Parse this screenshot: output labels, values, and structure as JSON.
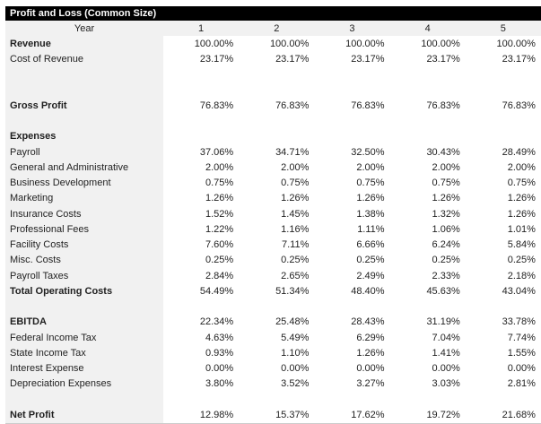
{
  "table": {
    "title": "Profit and Loss (Common Size)",
    "year_label": "Year",
    "years": [
      "1",
      "2",
      "3",
      "4",
      "5"
    ],
    "rows": [
      {
        "label": "Revenue",
        "bold": true,
        "values": [
          "100.00%",
          "100.00%",
          "100.00%",
          "100.00%",
          "100.00%"
        ]
      },
      {
        "label": "Cost of Revenue",
        "bold": false,
        "values": [
          "23.17%",
          "23.17%",
          "23.17%",
          "23.17%",
          "23.17%"
        ]
      },
      {
        "blank": true
      },
      {
        "blank": true
      },
      {
        "label": "Gross Profit",
        "bold": true,
        "values": [
          "76.83%",
          "76.83%",
          "76.83%",
          "76.83%",
          "76.83%"
        ]
      },
      {
        "blank": true
      },
      {
        "label": "Expenses",
        "bold": true,
        "values": [
          "",
          "",
          "",
          "",
          ""
        ]
      },
      {
        "label": "Payroll",
        "bold": false,
        "values": [
          "37.06%",
          "34.71%",
          "32.50%",
          "30.43%",
          "28.49%"
        ]
      },
      {
        "label": "General and Administrative",
        "bold": false,
        "values": [
          "2.00%",
          "2.00%",
          "2.00%",
          "2.00%",
          "2.00%"
        ]
      },
      {
        "label": "Business Development",
        "bold": false,
        "values": [
          "0.75%",
          "0.75%",
          "0.75%",
          "0.75%",
          "0.75%"
        ]
      },
      {
        "label": "Marketing",
        "bold": false,
        "values": [
          "1.26%",
          "1.26%",
          "1.26%",
          "1.26%",
          "1.26%"
        ]
      },
      {
        "label": "Insurance Costs",
        "bold": false,
        "values": [
          "1.52%",
          "1.45%",
          "1.38%",
          "1.32%",
          "1.26%"
        ]
      },
      {
        "label": "Professional Fees",
        "bold": false,
        "values": [
          "1.22%",
          "1.16%",
          "1.11%",
          "1.06%",
          "1.01%"
        ]
      },
      {
        "label": "Facility Costs",
        "bold": false,
        "values": [
          "7.60%",
          "7.11%",
          "6.66%",
          "6.24%",
          "5.84%"
        ]
      },
      {
        "label": "Misc. Costs",
        "bold": false,
        "values": [
          "0.25%",
          "0.25%",
          "0.25%",
          "0.25%",
          "0.25%"
        ]
      },
      {
        "label": "Payroll Taxes",
        "bold": false,
        "values": [
          "2.84%",
          "2.65%",
          "2.49%",
          "2.33%",
          "2.18%"
        ]
      },
      {
        "label": "Total Operating Costs",
        "bold": true,
        "values": [
          "54.49%",
          "51.34%",
          "48.40%",
          "45.63%",
          "43.04%"
        ]
      },
      {
        "blank": true
      },
      {
        "label": "EBITDA",
        "bold": true,
        "values": [
          "22.34%",
          "25.48%",
          "28.43%",
          "31.19%",
          "33.78%"
        ]
      },
      {
        "label": "Federal Income Tax",
        "bold": false,
        "values": [
          "4.63%",
          "5.49%",
          "6.29%",
          "7.04%",
          "7.74%"
        ]
      },
      {
        "label": "State Income Tax",
        "bold": false,
        "values": [
          "0.93%",
          "1.10%",
          "1.26%",
          "1.41%",
          "1.55%"
        ]
      },
      {
        "label": "Interest Expense",
        "bold": false,
        "values": [
          "0.00%",
          "0.00%",
          "0.00%",
          "0.00%",
          "0.00%"
        ]
      },
      {
        "label": "Depreciation Expenses",
        "bold": false,
        "values": [
          "3.80%",
          "3.52%",
          "3.27%",
          "3.03%",
          "2.81%"
        ]
      },
      {
        "blank": true
      },
      {
        "label": "Net Profit",
        "bold": true,
        "values": [
          "12.98%",
          "15.37%",
          "17.62%",
          "19.72%",
          "21.68%"
        ]
      }
    ],
    "colors": {
      "title_bg": "#000000",
      "title_text": "#ffffff",
      "label_column_bg": "#f1f1f1",
      "data_bg": "#ffffff",
      "text": "#1f1f1f"
    }
  }
}
